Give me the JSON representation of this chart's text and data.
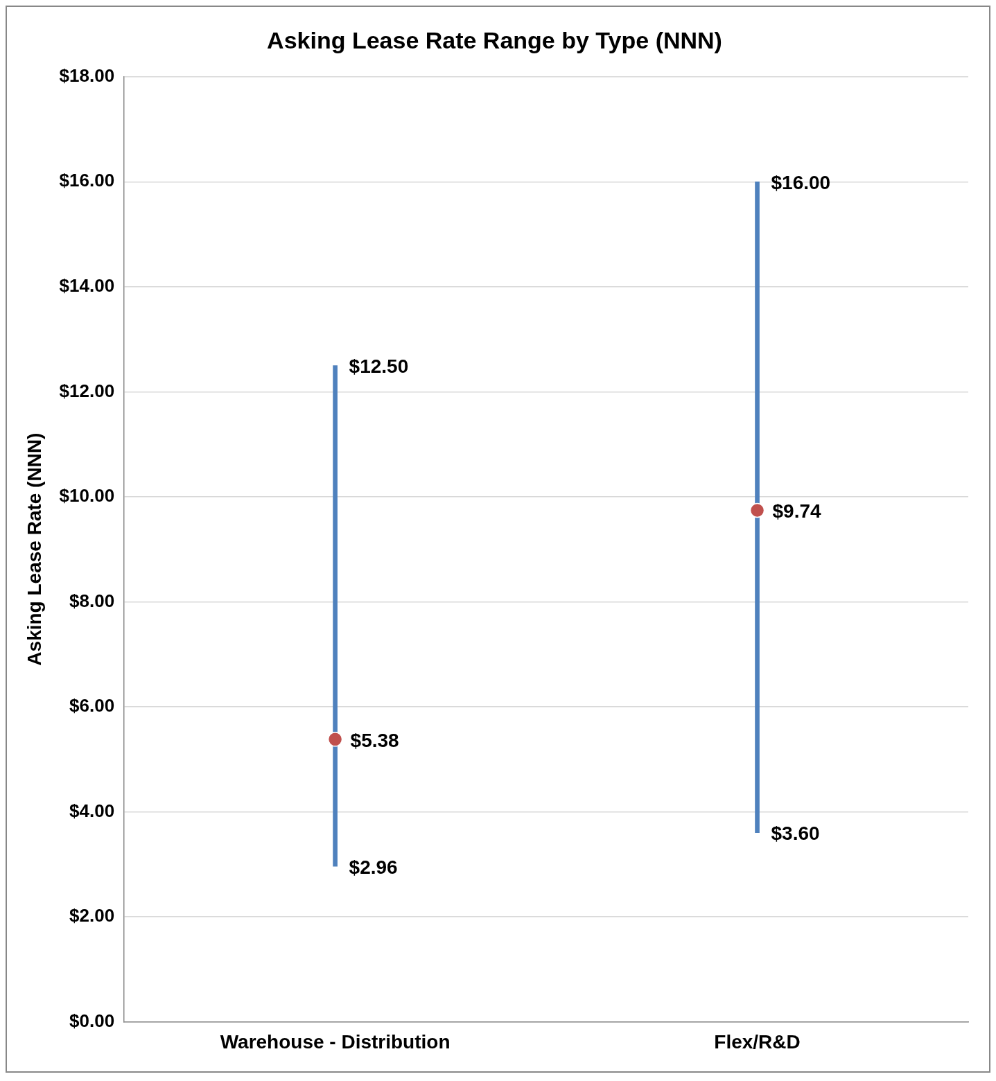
{
  "chart_data": {
    "type": "bar",
    "title": "Asking Lease Rate Range by Type (NNN)",
    "ylabel": "Asking Lease Rate (NNN)",
    "categories": [
      "Warehouse - Distribution",
      "Flex/R&D"
    ],
    "series": [
      {
        "color": "#4f81bd",
        "values": [
          9.54,
          12.4
        ],
        "base": [
          2.96,
          3.6
        ]
      },
      {
        "type": "scatter",
        "color": "#c0504d",
        "x": [
          "Warehouse - Distribution",
          "Flex/R&D"
        ],
        "values": [
          5.38,
          9.74
        ],
        "value_labels": [
          "$5.38",
          "$9.74"
        ]
      }
    ],
    "ylim": [
      0,
      18
    ],
    "yticks": [
      {
        "value": 0,
        "label": "$0.00"
      },
      {
        "value": 2,
        "label": "$2.00"
      },
      {
        "value": 4,
        "label": "$4.00"
      },
      {
        "value": 6,
        "label": "$6.00"
      },
      {
        "value": 8,
        "label": "$8.00"
      },
      {
        "value": 10,
        "label": "$10.00"
      },
      {
        "value": 12,
        "label": "$12.00"
      },
      {
        "value": 14,
        "label": "$14.00"
      },
      {
        "value": 16,
        "label": "$16.00"
      },
      {
        "value": 18,
        "label": "$18.00"
      }
    ],
    "grid": "y",
    "legend": false,
    "marker": "circle",
    "annotations": [
      {
        "text": "$12.50",
        "x": "Warehouse - Distribution",
        "y": 12.5
      },
      {
        "text": "$2.96",
        "x": "Warehouse - Distribution",
        "y": 2.96
      },
      {
        "text": "$16.00",
        "x": "Flex/R&D",
        "y": 16
      },
      {
        "text": "$3.60",
        "x": "Flex/R&D",
        "y": 3.6
      }
    ]
  }
}
